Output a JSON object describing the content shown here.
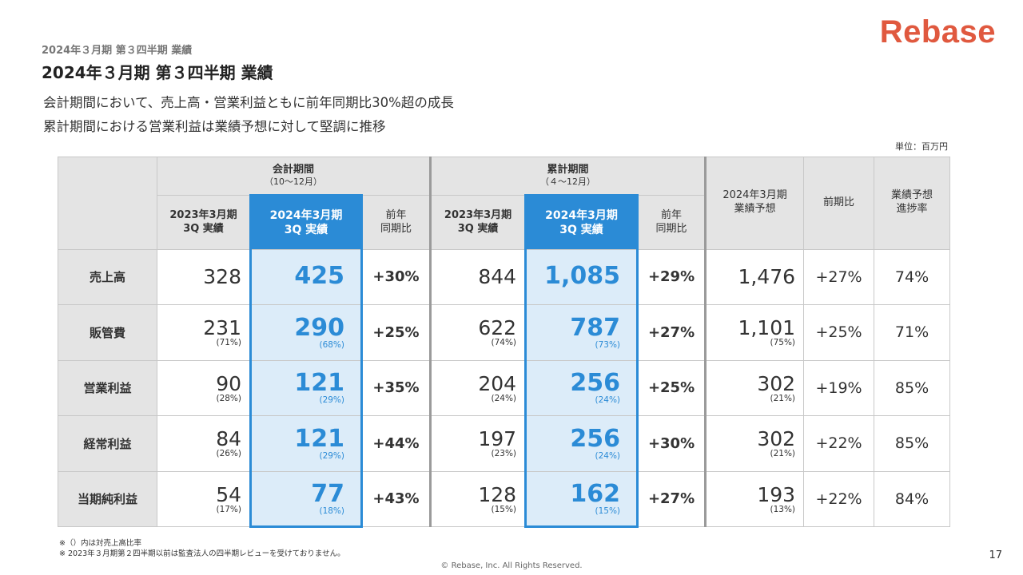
{
  "logo": "Rebase",
  "breadcrumb": "2024年３月期 第３四半期 業績",
  "title": "2024年３月期 第３四半期 業績",
  "subtitle_lines": [
    "会計期間において、売上高・営業利益ともに前年同期比30%超の成長",
    "累計期間における営業利益は業績予想に対して堅調に推移"
  ],
  "unit": "単位：百万円",
  "table": {
    "group_quarter": {
      "title": "会計期間",
      "range": "（10〜12月）"
    },
    "group_cumulative": {
      "title": "累計期間",
      "range": "（４〜12月）"
    },
    "col_prev_q": [
      "2023年3月期",
      "3Q 実績"
    ],
    "col_curr_q": [
      "2024年3月期",
      "3Q 実績"
    ],
    "col_yoy": [
      "前年",
      "同期比"
    ],
    "col_forecast": [
      "2024年3月期",
      "業績予想"
    ],
    "col_prev_ratio": "前期比",
    "col_progress": [
      "業績予想",
      "進捗率"
    ],
    "rows": [
      {
        "label": "売上高",
        "q_prev": "328",
        "q_prev_pct": "",
        "q_curr": "425",
        "q_curr_pct": "",
        "q_yoy": "+30%",
        "c_prev": "844",
        "c_prev_pct": "",
        "c_curr": "1,085",
        "c_curr_pct": "",
        "c_yoy": "+29%",
        "forecast": "1,476",
        "forecast_pct": "",
        "prev_ratio": "+27%",
        "progress": "74%"
      },
      {
        "label": "販管費",
        "q_prev": "231",
        "q_prev_pct": "(71%)",
        "q_curr": "290",
        "q_curr_pct": "(68%)",
        "q_yoy": "+25%",
        "c_prev": "622",
        "c_prev_pct": "(74%)",
        "c_curr": "787",
        "c_curr_pct": "(73%)",
        "c_yoy": "+27%",
        "forecast": "1,101",
        "forecast_pct": "(75%)",
        "prev_ratio": "+25%",
        "progress": "71%"
      },
      {
        "label": "営業利益",
        "q_prev": "90",
        "q_prev_pct": "(28%)",
        "q_curr": "121",
        "q_curr_pct": "(29%)",
        "q_yoy": "+35%",
        "c_prev": "204",
        "c_prev_pct": "(24%)",
        "c_curr": "256",
        "c_curr_pct": "(24%)",
        "c_yoy": "+25%",
        "forecast": "302",
        "forecast_pct": "(21%)",
        "prev_ratio": "+19%",
        "progress": "85%"
      },
      {
        "label": "経常利益",
        "q_prev": "84",
        "q_prev_pct": "(26%)",
        "q_curr": "121",
        "q_curr_pct": "(29%)",
        "q_yoy": "+44%",
        "c_prev": "197",
        "c_prev_pct": "(23%)",
        "c_curr": "256",
        "c_curr_pct": "(24%)",
        "c_yoy": "+30%",
        "forecast": "302",
        "forecast_pct": "(21%)",
        "prev_ratio": "+22%",
        "progress": "85%"
      },
      {
        "label": "当期純利益",
        "q_prev": "54",
        "q_prev_pct": "(17%)",
        "q_curr": "77",
        "q_curr_pct": "(18%)",
        "q_yoy": "+43%",
        "c_prev": "128",
        "c_prev_pct": "(15%)",
        "c_curr": "162",
        "c_curr_pct": "(15%)",
        "c_yoy": "+27%",
        "forecast": "193",
        "forecast_pct": "(13%)",
        "prev_ratio": "+22%",
        "progress": "84%"
      }
    ]
  },
  "notes": [
    "※（）内は対売上高比率",
    "※ 2023年３月期第２四半期以前は監査法人の四半期レビューを受けておりません。"
  ],
  "copyright": "© Rebase, Inc. All Rights Reserved.",
  "page_number": "17",
  "colors": {
    "accent": "#2b8bd6",
    "highlight_bg": "#dcecf9",
    "logo": "#e0593f",
    "header_bg": "#e4e4e4"
  }
}
